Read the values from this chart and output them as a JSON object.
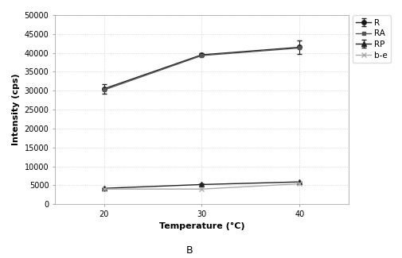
{
  "x": [
    20,
    30,
    40
  ],
  "series_order": [
    "R",
    "RA",
    "RP",
    "b-e"
  ],
  "series": {
    "R": {
      "y": [
        30500,
        39500,
        41500
      ],
      "yerr": [
        1200,
        500,
        1800
      ],
      "color": "#222222",
      "marker": "o",
      "markersize": 4,
      "linestyle": "-",
      "linewidth": 1.0,
      "markerfacecolor": "#111111"
    },
    "RA": {
      "y": [
        30200,
        39300,
        41300
      ],
      "yerr": [
        0,
        0,
        0
      ],
      "color": "#555555",
      "marker": "s",
      "markersize": 3.5,
      "linestyle": "-",
      "linewidth": 1.0,
      "markerfacecolor": "#555555"
    },
    "RP": {
      "y": [
        4200,
        5200,
        5900
      ],
      "yerr": [
        0,
        350,
        0
      ],
      "color": "#222222",
      "marker": "^",
      "markersize": 4,
      "linestyle": "-",
      "linewidth": 1.0,
      "markerfacecolor": "#222222"
    },
    "b-e": {
      "y": [
        4000,
        4000,
        5400
      ],
      "yerr": [
        0,
        0,
        0
      ],
      "color": "#aaaaaa",
      "marker": "x",
      "markersize": 4,
      "linestyle": "-",
      "linewidth": 1.0,
      "markerfacecolor": "#aaaaaa"
    }
  },
  "xlabel": "Temperature (°C)",
  "ylabel": "Intensity (cps)",
  "ylim": [
    0,
    50000
  ],
  "yticks": [
    0,
    5000,
    10000,
    15000,
    20000,
    25000,
    30000,
    35000,
    40000,
    45000,
    50000
  ],
  "xticks": [
    20,
    30,
    40
  ],
  "xlim": [
    15,
    45
  ],
  "panel_label": "B",
  "background_color": "#ffffff",
  "grid_color": "#cccccc",
  "label_fontsize": 8,
  "tick_fontsize": 7,
  "legend_fontsize": 7.5
}
